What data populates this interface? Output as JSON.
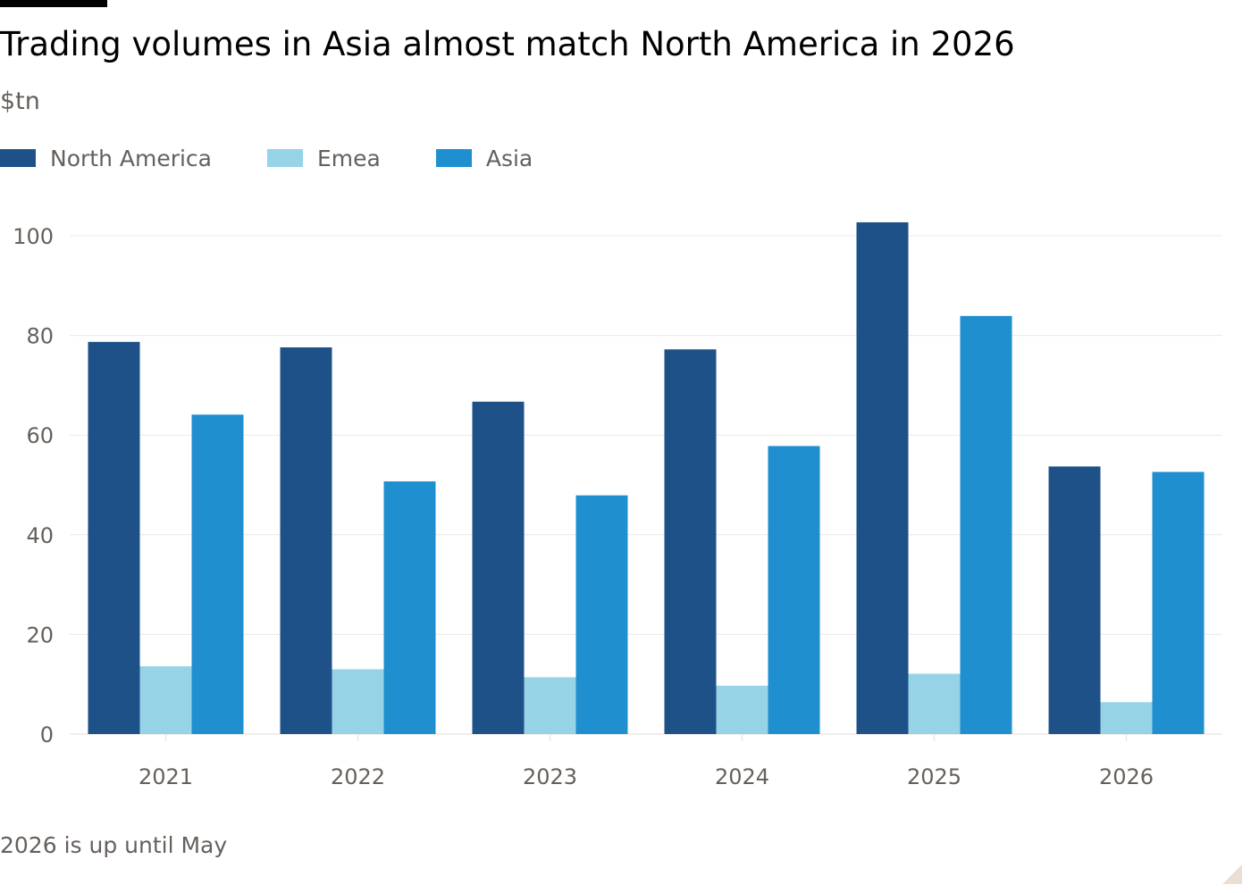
{
  "title": "Trading volumes in Asia almost match North America in 2026",
  "subtitle": "$tn",
  "footnote": "2026 is up until May",
  "colors": {
    "north_america": "#1f5189",
    "emea": "#96d3e7",
    "asia": "#1f8fd0",
    "grid": "#ebe9e6",
    "axis_text": "#66605c"
  },
  "chart_data": {
    "type": "bar",
    "title": "Trading volumes in Asia almost match North America in 2026",
    "ylabel": "$tn",
    "categories": [
      "2021",
      "2022",
      "2023",
      "2024",
      "2025",
      "2026"
    ],
    "series": [
      {
        "name": "North America",
        "values": [
          78.7,
          77.6,
          66.7,
          77.2,
          102.7,
          53.7
        ]
      },
      {
        "name": "Emea",
        "values": [
          13.6,
          13.0,
          11.4,
          9.7,
          12.1,
          6.4
        ]
      },
      {
        "name": "Asia",
        "values": [
          64.1,
          50.7,
          47.9,
          57.8,
          83.9,
          52.6
        ]
      }
    ],
    "ylim": [
      0,
      100
    ],
    "yticks": [
      0,
      20,
      40,
      60,
      80,
      100
    ],
    "grid": true,
    "legend": "top-left"
  }
}
